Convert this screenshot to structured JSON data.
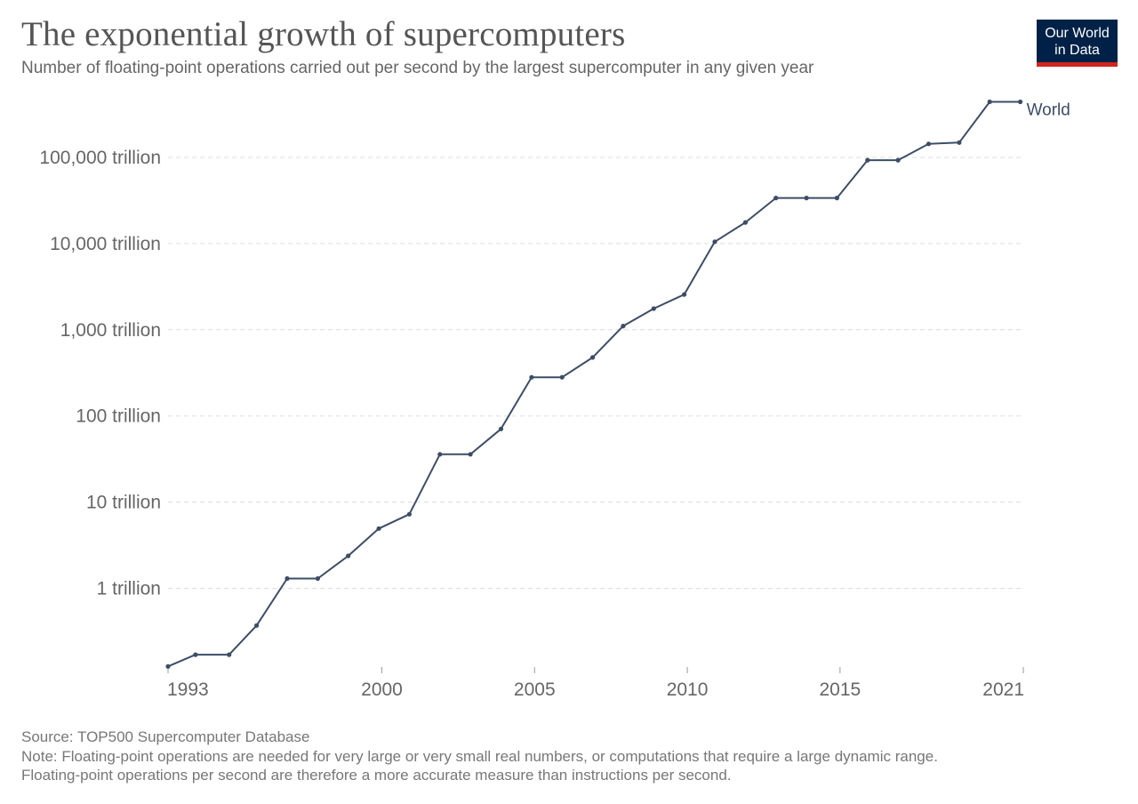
{
  "title": "The exponential growth of supercomputers",
  "subtitle": "Number of floating-point operations carried out per second by the largest supercomputer in any given year",
  "logo": {
    "line1": "Our World",
    "line2": "in Data"
  },
  "colors": {
    "series": "#3d4d66",
    "grid": "#dddddd",
    "logo_bg": "#002147",
    "logo_accent": "#ce261e"
  },
  "footer": {
    "source": "Source: TOP500 Supercomputer Database",
    "note_line1": "Note: Floating-point operations are needed for very large or very small real numbers, or computations that require a large dynamic range.",
    "note_line2": "Floating-point operations per second are therefore a more accurate measure than instructions per second."
  },
  "chart_data": {
    "type": "line",
    "scale_y": "log",
    "grid": "horizontal dashed",
    "legend": "label at right end of line",
    "title": "The exponential growth of supercomputers",
    "xlabel": "",
    "ylabel": "",
    "xlim": [
      1993,
      2021
    ],
    "x_ticks": [
      {
        "value": 1993,
        "label": "1993"
      },
      {
        "value": 2000,
        "label": "2000"
      },
      {
        "value": 2005,
        "label": "2005"
      },
      {
        "value": 2010,
        "label": "2010"
      },
      {
        "value": 2015,
        "label": "2015"
      },
      {
        "value": 2021,
        "label": "2021"
      }
    ],
    "y_ticks": [
      {
        "value": 1000000000000.0,
        "label": "1 trillion"
      },
      {
        "value": 10000000000000.0,
        "label": "10 trillion"
      },
      {
        "value": 100000000000000.0,
        "label": "100 trillion"
      },
      {
        "value": 1000000000000000.0,
        "label": "1,000 trillion"
      },
      {
        "value": 1e+16,
        "label": "10,000 trillion"
      },
      {
        "value": 1e+17,
        "label": "100,000 trillion"
      }
    ],
    "ylim": [
      100000000000.0,
      5e+17
    ],
    "series": [
      {
        "name": "World",
        "x": [
          1993.0,
          1993.9,
          1995.0,
          1995.9,
          1996.9,
          1997.9,
          1998.9,
          1999.9,
          2000.9,
          2001.9,
          2002.9,
          2003.9,
          2004.9,
          2005.9,
          2006.9,
          2007.9,
          2008.9,
          2009.9,
          2010.9,
          2011.9,
          2012.9,
          2013.9,
          2014.9,
          2015.9,
          2016.9,
          2017.9,
          2018.9,
          2019.9,
          2020.9
        ],
        "values": [
          124000000000.0,
          170000000000.0,
          170000000000.0,
          370000000000.0,
          1300000000000.0,
          1300000000000.0,
          2380000000000.0,
          4940000000000.0,
          7230000000000.0,
          35900000000000.0,
          35900000000000.0,
          70700000000000.0,
          281000000000000.0,
          281000000000000.0,
          478000000000000.0,
          1105000000000000.0,
          1759000000000000.0,
          2566000000000000.0,
          1.051e+16,
          1.759e+16,
          3.386e+16,
          3.386e+16,
          3.386e+16,
          9.3e+16,
          9.3e+16,
          1.435e+17,
          1.486e+17,
          4.42e+17,
          4.42e+17
        ]
      }
    ]
  }
}
